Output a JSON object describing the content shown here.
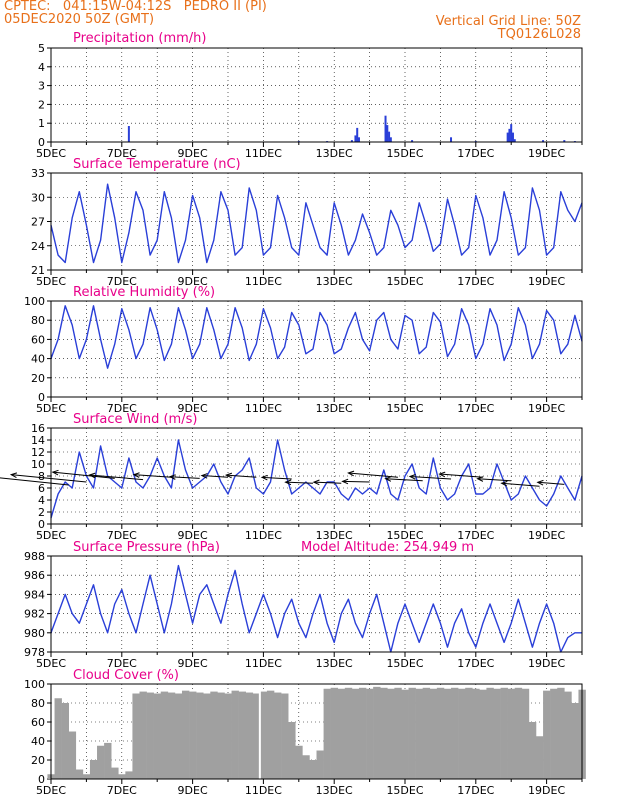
{
  "header": {
    "line1_left": "CPTEC:   041:15W-04:12S   PEDRO II (PI)",
    "line2_left": "05DEC2020 50Z (GMT)",
    "line1_right": "Vertical Grid Line: 50Z",
    "line2_right": "TQ0126L028"
  },
  "colors": {
    "header": "#e8701a",
    "title": "#e8008a",
    "line": "#2a3fd8",
    "arrow": "#000000",
    "cloud": "#a0a0a0"
  },
  "x_tick_labels": [
    "5DEC",
    "7DEC",
    "9DEC",
    "11DEC",
    "13DEC",
    "15DEC",
    "17DEC",
    "19DEC"
  ],
  "model_altitude": "Model Altitude: 254.949 m",
  "chart_data": [
    {
      "type": "bar",
      "title": "Precipitation (mm/h)",
      "ylim": [
        0,
        5
      ],
      "yticks": [
        "0",
        "1",
        "2",
        "3",
        "4",
        "5"
      ],
      "xlim": [
        0,
        15
      ],
      "grid": true,
      "bars": [
        {
          "x": 2.2,
          "v": 0.85
        },
        {
          "x": 7.0,
          "v": 0.05
        },
        {
          "x": 7.8,
          "v": 0.05
        },
        {
          "x": 8.5,
          "v": 0.1
        },
        {
          "x": 8.6,
          "v": 0.35
        },
        {
          "x": 8.65,
          "v": 0.75
        },
        {
          "x": 8.7,
          "v": 0.25
        },
        {
          "x": 9.45,
          "v": 1.4
        },
        {
          "x": 9.5,
          "v": 0.9
        },
        {
          "x": 9.55,
          "v": 0.55
        },
        {
          "x": 9.6,
          "v": 0.25
        },
        {
          "x": 10.2,
          "v": 0.1
        },
        {
          "x": 11.3,
          "v": 0.25
        },
        {
          "x": 12.0,
          "v": 0.05
        },
        {
          "x": 12.9,
          "v": 0.5
        },
        {
          "x": 12.95,
          "v": 0.7
        },
        {
          "x": 13.0,
          "v": 0.95
        },
        {
          "x": 13.05,
          "v": 0.5
        },
        {
          "x": 13.1,
          "v": 0.15
        },
        {
          "x": 13.9,
          "v": 0.1
        },
        {
          "x": 14.5,
          "v": 0.1
        },
        {
          "x": 14.8,
          "v": 0.05
        }
      ]
    },
    {
      "type": "line",
      "title": "Surface Temperature (nC)",
      "ylim": [
        20,
        33
      ],
      "yticks": [
        "21",
        "24",
        "27",
        "30",
        "33"
      ],
      "xlim": [
        0,
        15
      ],
      "grid": true,
      "x": [
        0,
        0.2,
        0.4,
        0.6,
        0.8,
        1.0,
        1.2,
        1.4,
        1.6,
        1.8,
        2.0,
        2.2,
        2.4,
        2.6,
        2.8,
        3.0,
        3.2,
        3.4,
        3.6,
        3.8,
        4.0,
        4.2,
        4.4,
        4.6,
        4.8,
        5.0,
        5.2,
        5.4,
        5.6,
        5.8,
        6.0,
        6.2,
        6.4,
        6.6,
        6.8,
        7.0,
        7.2,
        7.4,
        7.6,
        7.8,
        8.0,
        8.2,
        8.4,
        8.6,
        8.8,
        9.0,
        9.2,
        9.4,
        9.6,
        9.8,
        10.0,
        10.2,
        10.4,
        10.6,
        10.8,
        11.0,
        11.2,
        11.4,
        11.6,
        11.8,
        12.0,
        12.2,
        12.4,
        12.6,
        12.8,
        13.0,
        13.2,
        13.4,
        13.6,
        13.8,
        14.0,
        14.2,
        14.4,
        14.6,
        14.8,
        15.0
      ],
      "values": [
        26,
        22,
        21,
        27,
        30.5,
        26,
        21,
        24,
        31.5,
        27,
        21,
        25,
        30.5,
        28,
        22,
        24,
        30.5,
        27,
        21,
        24,
        30,
        27,
        21,
        24,
        30.5,
        28,
        22,
        23,
        31,
        28,
        22,
        23,
        30,
        27,
        23,
        22,
        29,
        26,
        23,
        22,
        29,
        26,
        22,
        24,
        27.5,
        25,
        22,
        23,
        28,
        26,
        23,
        24,
        29,
        26,
        22.5,
        23.5,
        29.5,
        26,
        22,
        23,
        30,
        27,
        22,
        24,
        30.5,
        27,
        22,
        23,
        31,
        28,
        22,
        23,
        30.5,
        28,
        26.5,
        29
      ]
    },
    {
      "type": "line",
      "title": "Relative Humidity (%)",
      "ylim": [
        0,
        100
      ],
      "yticks": [
        "0",
        "20",
        "40",
        "60",
        "80",
        "100"
      ],
      "xlim": [
        0,
        15
      ],
      "grid": true,
      "x": [
        0,
        0.2,
        0.4,
        0.6,
        0.8,
        1.0,
        1.2,
        1.4,
        1.6,
        1.8,
        2.0,
        2.2,
        2.4,
        2.6,
        2.8,
        3.0,
        3.2,
        3.4,
        3.6,
        3.8,
        4.0,
        4.2,
        4.4,
        4.6,
        4.8,
        5.0,
        5.2,
        5.4,
        5.6,
        5.8,
        6.0,
        6.2,
        6.4,
        6.6,
        6.8,
        7.0,
        7.2,
        7.4,
        7.6,
        7.8,
        8.0,
        8.2,
        8.4,
        8.6,
        8.8,
        9.0,
        9.2,
        9.4,
        9.6,
        9.8,
        10.0,
        10.2,
        10.4,
        10.6,
        10.8,
        11.0,
        11.2,
        11.4,
        11.6,
        11.8,
        12.0,
        12.2,
        12.4,
        12.6,
        12.8,
        13.0,
        13.2,
        13.4,
        13.6,
        13.8,
        14.0,
        14.2,
        14.4,
        14.6,
        14.8,
        15.0
      ],
      "values": [
        40,
        60,
        95,
        75,
        40,
        60,
        95,
        60,
        30,
        55,
        92,
        70,
        40,
        55,
        93,
        70,
        38,
        55,
        93,
        70,
        40,
        55,
        93,
        70,
        40,
        55,
        93,
        72,
        38,
        55,
        92,
        72,
        40,
        52,
        88,
        75,
        45,
        50,
        88,
        75,
        45,
        50,
        72,
        88,
        60,
        48,
        80,
        88,
        60,
        50,
        85,
        80,
        45,
        52,
        88,
        78,
        42,
        55,
        92,
        75,
        40,
        55,
        92,
        75,
        38,
        55,
        93,
        75,
        40,
        55,
        90,
        80,
        45,
        55,
        85,
        58
      ]
    },
    {
      "type": "line",
      "title": "Surface Wind (m/s)",
      "ylim": [
        0,
        16
      ],
      "yticks": [
        "0",
        "2",
        "4",
        "6",
        "8",
        "10",
        "12",
        "14",
        "16"
      ],
      "xlim": [
        0,
        15
      ],
      "grid": true,
      "x": [
        0,
        0.2,
        0.4,
        0.6,
        0.8,
        1.0,
        1.2,
        1.4,
        1.6,
        1.8,
        2.0,
        2.2,
        2.4,
        2.6,
        2.8,
        3.0,
        3.2,
        3.4,
        3.6,
        3.8,
        4.0,
        4.2,
        4.4,
        4.6,
        4.8,
        5.0,
        5.2,
        5.4,
        5.6,
        5.8,
        6.0,
        6.2,
        6.4,
        6.6,
        6.8,
        7.0,
        7.2,
        7.4,
        7.6,
        7.8,
        8.0,
        8.2,
        8.4,
        8.6,
        8.8,
        9.0,
        9.2,
        9.4,
        9.6,
        9.8,
        10.0,
        10.2,
        10.4,
        10.6,
        10.8,
        11.0,
        11.2,
        11.4,
        11.6,
        11.8,
        12.0,
        12.2,
        12.4,
        12.6,
        12.8,
        13.0,
        13.2,
        13.4,
        13.6,
        13.8,
        14.0,
        14.2,
        14.4,
        14.6,
        14.8,
        15.0
      ],
      "values": [
        1,
        5,
        7,
        6,
        12,
        8,
        6,
        13,
        8,
        7,
        6,
        11,
        7,
        6,
        8,
        11,
        8,
        6,
        14,
        9,
        6,
        7,
        8,
        10,
        7,
        5,
        8,
        9,
        11,
        6,
        5,
        7,
        14,
        9,
        5,
        6,
        7,
        6,
        5,
        7,
        7,
        5,
        4,
        6,
        5,
        6,
        5,
        9,
        5,
        4,
        8,
        10,
        6,
        5,
        11,
        6,
        4,
        5,
        8,
        10,
        5,
        5,
        6,
        10,
        7,
        4,
        5,
        8,
        6,
        4,
        3,
        5,
        8,
        6,
        4,
        8
      ],
      "arrows": [
        {
          "x": 0.5,
          "y": 6.5,
          "dx": -0.1,
          "dy": 4.0
        },
        {
          "x": 1.0,
          "y": 7.0,
          "dx": -0.2,
          "dy": 3.5
        },
        {
          "x": 1.8,
          "y": 7.6,
          "dx": -0.1,
          "dy": 3.0
        },
        {
          "x": 2.6,
          "y": 7.4,
          "dx": -0.3,
          "dy": 2.2
        },
        {
          "x": 3.4,
          "y": 7.8,
          "dx": -0.4,
          "dy": 1.2
        },
        {
          "x": 4.2,
          "y": 7.6,
          "dx": -0.4,
          "dy": 0.8
        },
        {
          "x": 5.0,
          "y": 7.8,
          "dx": -0.3,
          "dy": 0.8
        },
        {
          "x": 5.8,
          "y": 7.8,
          "dx": -0.3,
          "dy": 1.0
        },
        {
          "x": 6.8,
          "y": 7.5,
          "dx": -0.4,
          "dy": 0.8
        },
        {
          "x": 7.4,
          "y": 6.8,
          "dx": -0.5,
          "dy": 0.5
        },
        {
          "x": 8.2,
          "y": 6.8,
          "dx": -0.5,
          "dy": 0.5
        },
        {
          "x": 9.0,
          "y": 7.0,
          "dx": -0.6,
          "dy": 0.3
        },
        {
          "x": 9.8,
          "y": 7.8,
          "dx": -0.3,
          "dy": 2.0
        },
        {
          "x": 10.5,
          "y": 7.2,
          "dx": -0.5,
          "dy": 1.0
        },
        {
          "x": 11.3,
          "y": 7.5,
          "dx": -0.5,
          "dy": 1.2
        },
        {
          "x": 12.2,
          "y": 7.8,
          "dx": -0.4,
          "dy": 1.5
        },
        {
          "x": 13.0,
          "y": 7.2,
          "dx": -0.4,
          "dy": 1.0
        },
        {
          "x": 13.8,
          "y": 6.3,
          "dx": -0.3,
          "dy": 1.4
        },
        {
          "x": 14.5,
          "y": 6.6,
          "dx": -0.2,
          "dy": 1.0
        }
      ]
    },
    {
      "type": "line",
      "title": "Surface Pressure (hPa)",
      "ylim": [
        978,
        988
      ],
      "yticks": [
        "978",
        "980",
        "982",
        "984",
        "986",
        "988"
      ],
      "xlim": [
        0,
        15
      ],
      "grid": true,
      "x": [
        0,
        0.2,
        0.4,
        0.6,
        0.8,
        1.0,
        1.2,
        1.4,
        1.6,
        1.8,
        2.0,
        2.2,
        2.4,
        2.6,
        2.8,
        3.0,
        3.2,
        3.4,
        3.6,
        3.8,
        4.0,
        4.2,
        4.4,
        4.6,
        4.8,
        5.0,
        5.2,
        5.4,
        5.6,
        5.8,
        6.0,
        6.2,
        6.4,
        6.6,
        6.8,
        7.0,
        7.2,
        7.4,
        7.6,
        7.8,
        8.0,
        8.2,
        8.4,
        8.6,
        8.8,
        9.0,
        9.2,
        9.4,
        9.6,
        9.8,
        10.0,
        10.2,
        10.4,
        10.6,
        10.8,
        11.0,
        11.2,
        11.4,
        11.6,
        11.8,
        12.0,
        12.2,
        12.4,
        12.6,
        12.8,
        13.0,
        13.2,
        13.4,
        13.6,
        13.8,
        14.0,
        14.2,
        14.4,
        14.6,
        14.8,
        15.0
      ],
      "values": [
        980,
        982,
        984,
        982,
        981,
        983,
        985,
        982,
        980,
        983,
        984.5,
        982,
        980,
        983,
        986,
        983,
        980,
        983,
        987,
        984,
        981,
        984,
        985,
        983,
        981,
        984,
        986.5,
        983,
        980,
        982,
        984,
        982,
        979.5,
        982,
        983.5,
        981,
        979.5,
        982,
        984,
        981,
        979,
        982,
        983.5,
        981,
        979.5,
        982,
        984,
        981,
        978,
        981,
        983,
        981,
        979,
        981,
        983,
        981,
        978.5,
        981,
        982.5,
        980,
        978.5,
        981,
        983,
        981,
        979,
        981,
        983.5,
        981,
        978.5,
        981,
        983,
        981,
        978,
        979.5,
        980,
        980
      ]
    },
    {
      "type": "area",
      "title": "Cloud Cover (%)",
      "ylim": [
        0,
        100
      ],
      "yticks": [
        "0",
        "20",
        "40",
        "60",
        "80",
        "100"
      ],
      "xlim": [
        0,
        15
      ],
      "grid": true,
      "x": [
        0,
        0.2,
        0.4,
        0.6,
        0.8,
        1.0,
        1.2,
        1.4,
        1.6,
        1.8,
        2.0,
        2.2,
        2.4,
        2.6,
        2.8,
        3.0,
        3.2,
        3.4,
        3.6,
        3.8,
        4.0,
        4.2,
        4.4,
        4.6,
        4.8,
        5.0,
        5.2,
        5.4,
        5.6,
        5.8,
        6.0,
        6.2,
        6.4,
        6.6,
        6.8,
        7.0,
        7.2,
        7.4,
        7.6,
        7.8,
        8.0,
        8.2,
        8.4,
        8.6,
        8.8,
        9.0,
        9.2,
        9.4,
        9.6,
        9.8,
        10.0,
        10.2,
        10.4,
        10.6,
        10.8,
        11.0,
        11.2,
        11.4,
        11.6,
        11.8,
        12.0,
        12.2,
        12.4,
        12.6,
        12.8,
        13.0,
        13.2,
        13.4,
        13.6,
        13.8,
        14.0,
        14.2,
        14.4,
        14.6,
        14.8,
        15.0
      ],
      "values": [
        5,
        85,
        80,
        50,
        10,
        5,
        20,
        35,
        38,
        12,
        5,
        8,
        90,
        92,
        91,
        90,
        92,
        91,
        90,
        93,
        92,
        91,
        90,
        92,
        91,
        90,
        93,
        92,
        91,
        90,
        92,
        93,
        91,
        90,
        60,
        35,
        25,
        20,
        30,
        95,
        96,
        95,
        96,
        95,
        96,
        95,
        97,
        96,
        95,
        96,
        94,
        96,
        95,
        96,
        95,
        96,
        95,
        96,
        95,
        96,
        95,
        94,
        96,
        95,
        96,
        95,
        96,
        95,
        60,
        45,
        93,
        95,
        96,
        92,
        80,
        94
      ]
    }
  ]
}
